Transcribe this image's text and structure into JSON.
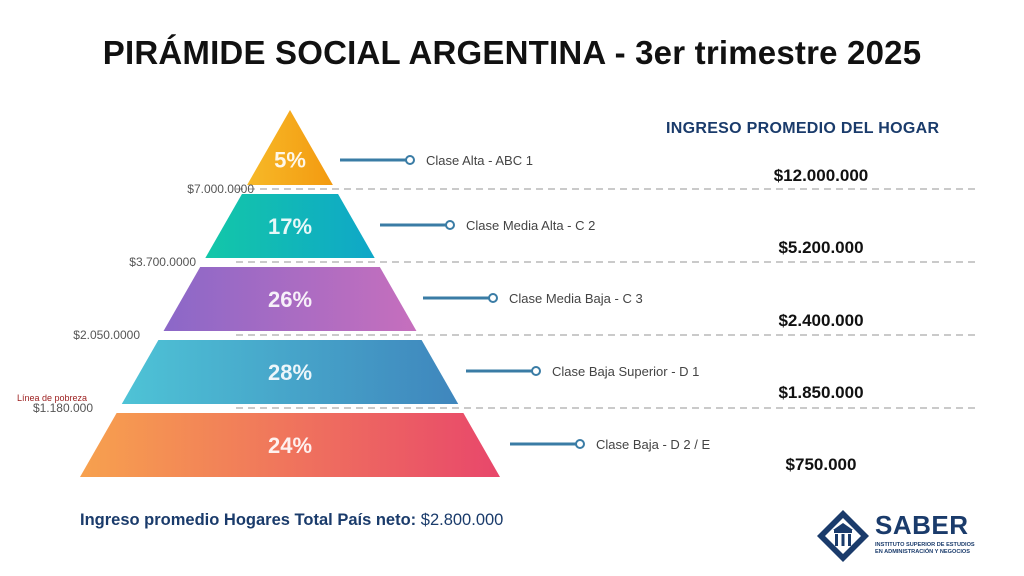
{
  "title": "PIRÁMIDE SOCIAL ARGENTINA - 3er trimestre 2025",
  "column_header": "INGRESO PROMEDIO DEL HOGAR",
  "chart_data": {
    "type": "pyramid",
    "levels": [
      {
        "percent": "5%",
        "value": 5,
        "label": "Clase Alta - ABC 1",
        "income": "$12.000.000",
        "colors": [
          "#f7b928",
          "#f39a10"
        ]
      },
      {
        "percent": "17%",
        "value": 17,
        "label": "Clase Media Alta - C 2",
        "income": "$5.200.000",
        "colors": [
          "#13c7a8",
          "#0fa7c8"
        ]
      },
      {
        "percent": "26%",
        "value": 26,
        "label": "Clase Media Baja - C 3",
        "income": "$2.400.000",
        "colors": [
          "#8b68c8",
          "#c66fbd"
        ]
      },
      {
        "percent": "28%",
        "value": 28,
        "label": "Clase Baja Superior - D 1",
        "income": "$1.850.000",
        "colors": [
          "#4ec3d6",
          "#3f86bd"
        ]
      },
      {
        "percent": "24%",
        "value": 24,
        "label": "Clase Baja - D 2 / E",
        "income": "$750.000",
        "colors": [
          "#f7a14e",
          "#e8476b"
        ]
      }
    ],
    "thresholds": [
      "$7.000.0000",
      "$3.700.0000",
      "$2.050.0000",
      "$1.180.000"
    ],
    "poverty_line_label": "Línea de pobreza"
  },
  "footer": {
    "label": "Ingreso promedio Hogares Total País neto:",
    "value": "$2.800.000"
  },
  "logo": {
    "name": "SABER",
    "subtitle_line1": "INSTITUTO SUPERIOR DE ESTUDIOS",
    "subtitle_line2": "EN ADMINISTRACIÓN Y NEGOCIOS"
  },
  "colors": {
    "navy": "#1a3b6b",
    "connector": "#3a7ca5",
    "dashed_line": "#aaaaaa",
    "poverty_label": "#9b1c1c"
  }
}
